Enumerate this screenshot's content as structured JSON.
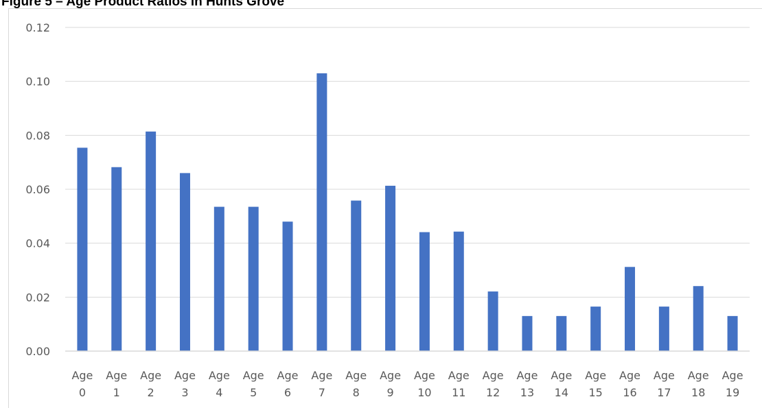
{
  "figure": {
    "title": "Figure 5 – Age Product Ratios in Hunts Grove"
  },
  "chart_data": {
    "type": "bar",
    "title": "",
    "xlabel": "",
    "ylabel": "",
    "ylim": [
      0,
      0.12
    ],
    "yticks": [
      "0.00",
      "0.02",
      "0.04",
      "0.06",
      "0.08",
      "0.10",
      "0.12"
    ],
    "grid": true,
    "legend": "none",
    "bar_color": "#4472c4",
    "categories": [
      [
        "Age",
        "0"
      ],
      [
        "Age",
        "1"
      ],
      [
        "Age",
        "2"
      ],
      [
        "Age",
        "3"
      ],
      [
        "Age",
        "4"
      ],
      [
        "Age",
        "5"
      ],
      [
        "Age",
        "6"
      ],
      [
        "Age",
        "7"
      ],
      [
        "Age",
        "8"
      ],
      [
        "Age",
        "9"
      ],
      [
        "Age",
        "10"
      ],
      [
        "Age",
        "11"
      ],
      [
        "Age",
        "12"
      ],
      [
        "Age",
        "13"
      ],
      [
        "Age",
        "14"
      ],
      [
        "Age",
        "15"
      ],
      [
        "Age",
        "16"
      ],
      [
        "Age",
        "17"
      ],
      [
        "Age",
        "18"
      ],
      [
        "Age",
        "19"
      ]
    ],
    "values": [
      0.0754,
      0.0682,
      0.0814,
      0.066,
      0.0535,
      0.0535,
      0.048,
      0.103,
      0.0558,
      0.0613,
      0.0441,
      0.0443,
      0.0221,
      0.013,
      0.013,
      0.0165,
      0.0312,
      0.0165,
      0.0241,
      0.013
    ]
  }
}
